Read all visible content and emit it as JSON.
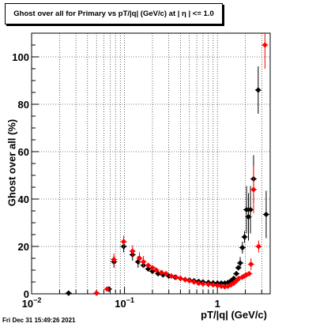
{
  "title": "Ghost over all for Primary vs pT/|q| (GeV/c) at |  η  | <= 1.0",
  "timestamp": "Fri Dec 31 15:49:26 2021",
  "chart_data": {
    "type": "scatter",
    "xlabel": "pT/|q| (GeV/c)",
    "ylabel": "Ghost over all (%)",
    "x_scale": "log",
    "xlim": [
      0.01,
      3.7
    ],
    "ylim": [
      0,
      110
    ],
    "grid": true,
    "x_ticks": [
      {
        "v": 0.01,
        "label": "10",
        "sup": "−2"
      },
      {
        "v": 0.1,
        "label": "10",
        "sup": "−1"
      },
      {
        "v": 1,
        "label": "1",
        "sup": ""
      }
    ],
    "y_ticks": [
      {
        "v": 0,
        "label": "0"
      },
      {
        "v": 20,
        "label": "20"
      },
      {
        "v": 40,
        "label": "40"
      },
      {
        "v": 60,
        "label": "60"
      },
      {
        "v": 80,
        "label": "80"
      },
      {
        "v": 100,
        "label": "100"
      }
    ],
    "series": [
      {
        "color": "#000000",
        "points": [
          {
            "x": 0.025,
            "y": 0.3
          },
          {
            "x": 0.068,
            "y": 2.0
          },
          {
            "x": 0.077,
            "y": 13.5
          },
          {
            "x": 0.098,
            "y": 20.0
          },
          {
            "x": 0.122,
            "y": 16.5
          },
          {
            "x": 0.14,
            "y": 13.5
          },
          {
            "x": 0.16,
            "y": 12.0
          },
          {
            "x": 0.18,
            "y": 10.5
          },
          {
            "x": 0.2,
            "y": 9.5
          },
          {
            "x": 0.23,
            "y": 8.5
          },
          {
            "x": 0.26,
            "y": 8.0
          },
          {
            "x": 0.3,
            "y": 7.5
          },
          {
            "x": 0.35,
            "y": 7.0
          },
          {
            "x": 0.4,
            "y": 6.5
          },
          {
            "x": 0.45,
            "y": 6.0
          },
          {
            "x": 0.5,
            "y": 5.8
          },
          {
            "x": 0.56,
            "y": 5.5
          },
          {
            "x": 0.63,
            "y": 5.2
          },
          {
            "x": 0.7,
            "y": 5.0
          },
          {
            "x": 0.8,
            "y": 4.8
          },
          {
            "x": 0.9,
            "y": 4.6
          },
          {
            "x": 1.0,
            "y": 4.5
          },
          {
            "x": 1.1,
            "y": 4.5
          },
          {
            "x": 1.2,
            "y": 4.5
          },
          {
            "x": 1.3,
            "y": 4.8
          },
          {
            "x": 1.4,
            "y": 5.5
          },
          {
            "x": 1.5,
            "y": 6.5
          },
          {
            "x": 1.6,
            "y": 8.5
          },
          {
            "x": 1.68,
            "y": 11.0
          },
          {
            "x": 1.76,
            "y": 13.0
          },
          {
            "x": 1.86,
            "y": 19.5
          },
          {
            "x": 1.96,
            "y": 24.0
          },
          {
            "x": 2.06,
            "y": 35.5
          },
          {
            "x": 2.16,
            "y": 32.5
          },
          {
            "x": 2.27,
            "y": 35.5
          },
          {
            "x": 2.45,
            "y": 48.5
          },
          {
            "x": 2.75,
            "y": 86.0
          },
          {
            "x": 3.35,
            "y": 33.5
          }
        ]
      },
      {
        "color": "#ff0000",
        "points": [
          {
            "x": 0.05,
            "y": 0.3
          },
          {
            "x": 0.065,
            "y": 2.0
          },
          {
            "x": 0.077,
            "y": 14.5
          },
          {
            "x": 0.098,
            "y": 22.0
          },
          {
            "x": 0.122,
            "y": 18.0
          },
          {
            "x": 0.145,
            "y": 15.0
          },
          {
            "x": 0.16,
            "y": 13.5
          },
          {
            "x": 0.18,
            "y": 12.0
          },
          {
            "x": 0.2,
            "y": 11.0
          },
          {
            "x": 0.22,
            "y": 10.0
          },
          {
            "x": 0.25,
            "y": 9.0
          },
          {
            "x": 0.28,
            "y": 8.5
          },
          {
            "x": 0.32,
            "y": 7.5
          },
          {
            "x": 0.36,
            "y": 7.0
          },
          {
            "x": 0.4,
            "y": 6.5
          },
          {
            "x": 0.45,
            "y": 6.0
          },
          {
            "x": 0.5,
            "y": 5.5
          },
          {
            "x": 0.56,
            "y": 5.0
          },
          {
            "x": 0.63,
            "y": 4.5
          },
          {
            "x": 0.7,
            "y": 4.2
          },
          {
            "x": 0.8,
            "y": 4.0
          },
          {
            "x": 0.9,
            "y": 3.8
          },
          {
            "x": 1.0,
            "y": 3.5
          },
          {
            "x": 1.1,
            "y": 3.2
          },
          {
            "x": 1.2,
            "y": 3.0
          },
          {
            "x": 1.3,
            "y": 3.2
          },
          {
            "x": 1.4,
            "y": 3.8
          },
          {
            "x": 1.5,
            "y": 4.5
          },
          {
            "x": 1.6,
            "y": 5.5
          },
          {
            "x": 1.7,
            "y": 6.5
          },
          {
            "x": 1.85,
            "y": 7.0
          },
          {
            "x": 1.95,
            "y": 7.5
          },
          {
            "x": 2.05,
            "y": 8.0
          },
          {
            "x": 2.2,
            "y": 8.5
          },
          {
            "x": 2.3,
            "y": 12.5
          },
          {
            "x": 2.45,
            "y": 44.0
          },
          {
            "x": 2.78,
            "y": 20.0
          },
          {
            "x": 3.25,
            "y": 105.0
          }
        ]
      }
    ]
  }
}
